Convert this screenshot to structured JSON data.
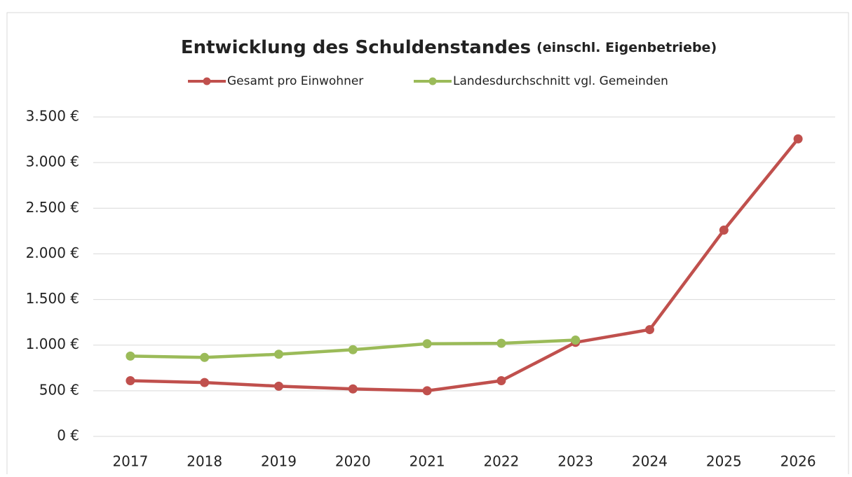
{
  "chart_data": {
    "type": "line",
    "title": "Entwicklung des Schuldenstandes",
    "subtitle": "(einschl. Eigenbetriebe)",
    "categories": [
      "2017",
      "2018",
      "2019",
      "2020",
      "2021",
      "2022",
      "2023",
      "2024",
      "2025",
      "2026"
    ],
    "series": [
      {
        "name": "Gesamt pro Einwohner",
        "color": "#c0504d",
        "values": [
          610,
          590,
          550,
          520,
          500,
          610,
          1030,
          1170,
          2260,
          3260
        ]
      },
      {
        "name": "Landesdurchschnitt vgl. Gemeinden",
        "color": "#9bbb59",
        "values": [
          880,
          865,
          900,
          950,
          1015,
          1020,
          1055,
          null,
          null,
          null
        ]
      }
    ],
    "ylim": [
      0,
      3500
    ],
    "yticks": [
      {
        "value": 0,
        "label": "0 €"
      },
      {
        "value": 500,
        "label": "500 €"
      },
      {
        "value": 1000,
        "label": "1.000 €"
      },
      {
        "value": 1500,
        "label": "1.500 €"
      },
      {
        "value": 2000,
        "label": "2.000 €"
      },
      {
        "value": 2500,
        "label": "2.500 €"
      },
      {
        "value": 3000,
        "label": "3.000 €"
      },
      {
        "value": 3500,
        "label": "3.500 €"
      }
    ],
    "grid": true,
    "legend": "top"
  }
}
